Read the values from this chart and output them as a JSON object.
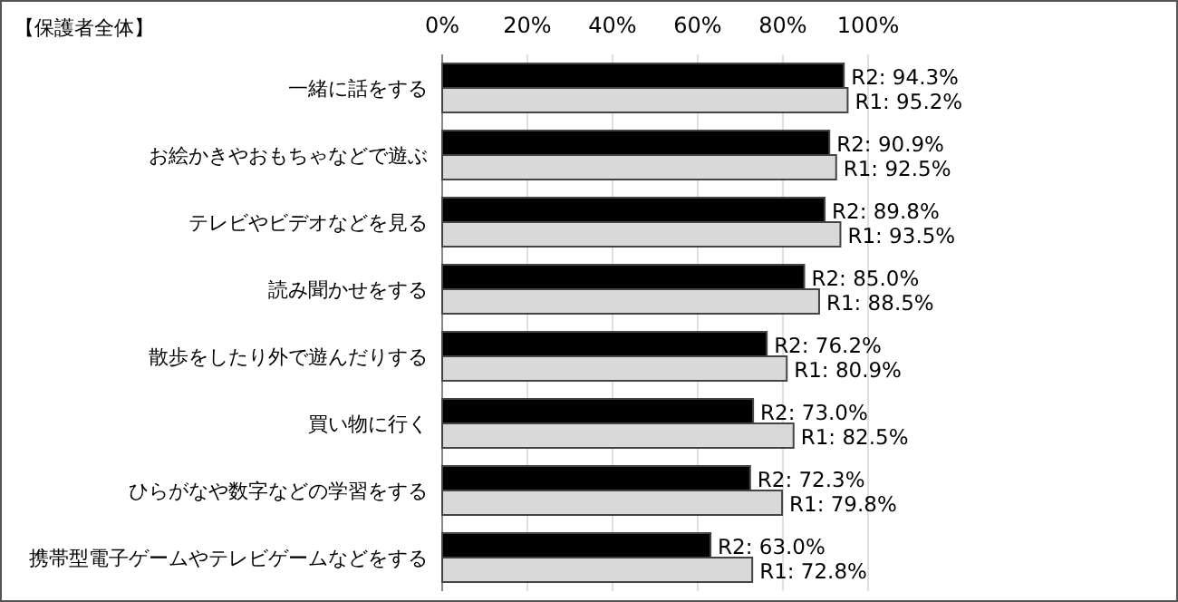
{
  "chart_data": {
    "type": "bar",
    "orientation": "horizontal",
    "title": "【保護者全体】",
    "categories": [
      "一緒に話をする",
      "お絵かきやおもちゃなどで遊ぶ",
      "テレビやビデオなどを見る",
      "読み聞かせをする",
      "散歩をしたり外で遊んだりする",
      "買い物に行く",
      "ひらがなや数字などの学習をする",
      "携帯型電子ゲームやテレビゲームなどをする"
    ],
    "series": [
      {
        "color": "#000000",
        "values": [
          94.3,
          90.9,
          89.8,
          85.0,
          76.2,
          73.0,
          72.3,
          63.0
        ],
        "value_labels": [
          "R2: 94.3%",
          "R2: 90.9%",
          "R2: 89.8%",
          "R2: 85.0%",
          "R2: 76.2%",
          "R2: 73.0%",
          "R2: 72.3%",
          "R2: 63.0%"
        ]
      },
      {
        "color": "#d9d9d9",
        "values": [
          95.2,
          92.5,
          93.5,
          88.5,
          80.9,
          82.5,
          79.8,
          72.8
        ],
        "value_labels": [
          "R1: 95.2%",
          "R1: 92.5%",
          "R1: 93.5%",
          "R1: 88.5%",
          "R1: 80.9%",
          "R1: 82.5%",
          "R1: 79.8%",
          "R1: 72.8%"
        ]
      }
    ],
    "xlim": [
      0,
      100
    ],
    "xticks": [
      {
        "value": 0,
        "label": "0%"
      },
      {
        "value": 20,
        "label": "20%"
      },
      {
        "value": 40,
        "label": "40%"
      },
      {
        "value": 60,
        "label": "60%"
      },
      {
        "value": 80,
        "label": "80%"
      },
      {
        "value": 100,
        "label": "100%"
      }
    ],
    "grid": "x"
  }
}
